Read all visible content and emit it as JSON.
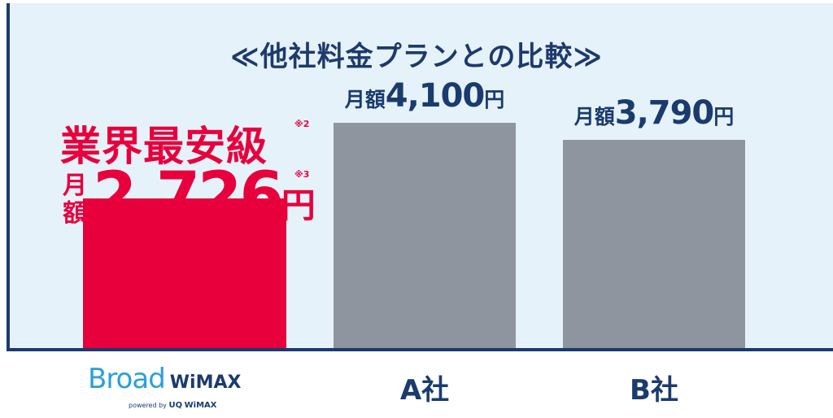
{
  "chart_data": {
    "type": "bar",
    "title": "≪他社料金プランとの比較≫",
    "categories": [
      "Broad WiMAX",
      "A社",
      "B社"
    ],
    "values": [
      2726,
      4100,
      3790
    ],
    "unit": "円",
    "value_prefix": "月額",
    "colors": [
      "#e8003d",
      "#8e959f",
      "#8e959f"
    ],
    "ylim": [
      0,
      4800
    ],
    "grid": false,
    "value_labels": [
      "2,726",
      "4,100",
      "3,790"
    ],
    "highlight": {
      "headline": "業界最安級",
      "headline_note": "※2",
      "price_note": "※3",
      "prefix_chars": [
        "月",
        "額"
      ],
      "price": "2,726",
      "unit": "円"
    }
  },
  "logo": {
    "brand_main": "Broad",
    "brand_suffix": "WiMAX",
    "powered_by": "powered by",
    "sub_brand_uq": "UQ",
    "sub_brand_wimax": "WiMAX"
  }
}
